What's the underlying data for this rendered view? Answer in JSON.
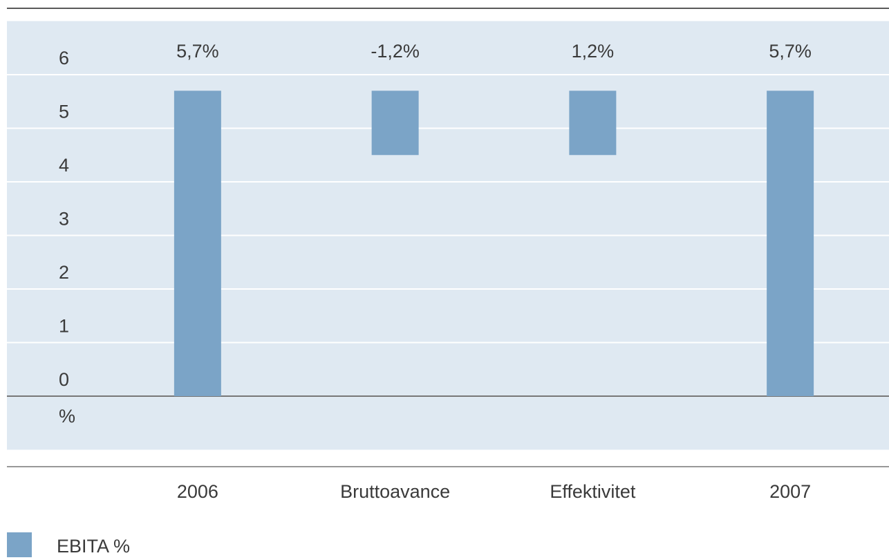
{
  "chart_data": {
    "type": "waterfall",
    "categories": [
      "2006",
      "Bruttoavance",
      "Effektivitet",
      "2007"
    ],
    "series": [
      {
        "name": "EBITA %",
        "color": "#7ba4c7",
        "values": [
          5.7,
          -1.2,
          1.2,
          5.7
        ],
        "value_labels": [
          "5,7%",
          "-1,2%",
          "1,2%",
          "5,7%"
        ],
        "measure": [
          "total",
          "relative",
          "relative",
          "total"
        ]
      }
    ],
    "y_label": "%",
    "ylim": [
      -1,
      7
    ],
    "yticks": [
      0,
      1,
      2,
      3,
      4,
      5,
      6
    ],
    "grid": true,
    "legend": "bottom-left"
  }
}
